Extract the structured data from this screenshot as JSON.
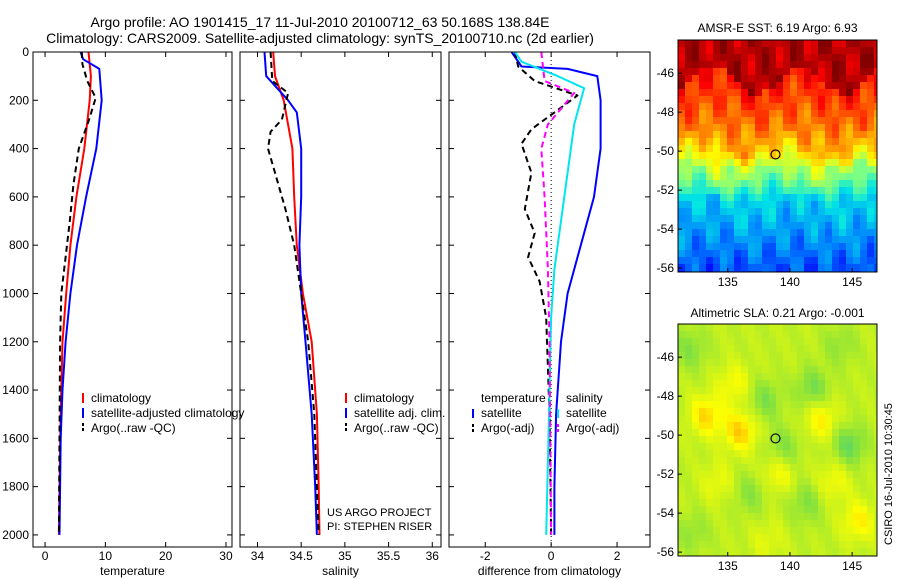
{
  "header": {
    "title_line1": "Argo profile: AO 1901415_17 11-Jul-2010 20100712_63 50.168S 138.84E",
    "title_line2": "Climatology: CARS2009. Satellite-adjusted climatology: synTS_20100710.nc (2d earlier)"
  },
  "credit": "CSIRO 16-Jul-2010 10:30:45",
  "project": {
    "line1": "US ARGO PROJECT",
    "line2": "PI: STEPHEN RISER"
  },
  "chart_data": [
    {
      "type": "line",
      "id": "temperature",
      "xlabel": "temperature",
      "ylabel": "",
      "xlim": [
        -2,
        31
      ],
      "ylim": [
        2050,
        0
      ],
      "xticks": [
        0,
        10,
        20,
        30
      ],
      "yticks": [
        0,
        200,
        400,
        600,
        800,
        1000,
        1200,
        1400,
        1600,
        1800,
        2000
      ],
      "legend": {
        "placement": "lower-right",
        "entries": [
          "climatology",
          "satellite-adjusted climatology",
          "Argo(..raw -QC)"
        ]
      },
      "series": [
        {
          "name": "climatology",
          "color": "#ff0000",
          "dash": "",
          "x": [
            7.2,
            7.6,
            7.4,
            6.5,
            5.2,
            4.2,
            3.5,
            2.9,
            2.6,
            2.4,
            2.3
          ],
          "y": [
            0,
            100,
            200,
            400,
            600,
            800,
            1000,
            1200,
            1500,
            1800,
            2000
          ]
        },
        {
          "name": "satellite-adjusted climatology",
          "color": "#0000ff",
          "dash": "",
          "x": [
            5.9,
            6.3,
            9.0,
            9.4,
            8.5,
            6.8,
            5.3,
            4.2,
            3.4,
            2.9,
            2.6,
            2.5,
            2.4
          ],
          "y": [
            0,
            30,
            70,
            200,
            400,
            600,
            800,
            1000,
            1200,
            1400,
            1600,
            1800,
            2000
          ]
        },
        {
          "name": "Argo(..raw -QC)",
          "color": "#000000",
          "dash": "6,4",
          "x": [
            6.1,
            6.2,
            7.0,
            8.4,
            7.3,
            5.6,
            4.7,
            4.1,
            3.4,
            2.7,
            2.5,
            2.4,
            2.3
          ],
          "y": [
            0,
            50,
            120,
            190,
            280,
            400,
            550,
            700,
            850,
            1000,
            1200,
            1600,
            2000
          ]
        }
      ]
    },
    {
      "type": "line",
      "id": "salinity",
      "xlabel": "salinity",
      "ylabel": "",
      "xlim": [
        33.8,
        36.1
      ],
      "ylim": [
        2050,
        0
      ],
      "xticks": [
        34,
        34.5,
        35,
        35.5,
        36
      ],
      "yticks": [
        0,
        200,
        400,
        600,
        800,
        1000,
        1200,
        1400,
        1600,
        1800,
        2000
      ],
      "legend": {
        "placement": "lower-right",
        "entries": [
          "climatology",
          "satellite adj. clim.",
          "Argo(..raw -QC)"
        ]
      },
      "series": [
        {
          "name": "climatology",
          "color": "#ff0000",
          "dash": "",
          "x": [
            34.18,
            34.2,
            34.3,
            34.4,
            34.42,
            34.45,
            34.52,
            34.62,
            34.68,
            34.7,
            34.71
          ],
          "y": [
            0,
            100,
            200,
            400,
            600,
            800,
            1000,
            1200,
            1500,
            1800,
            2000
          ]
        },
        {
          "name": "satellite adj. clim.",
          "color": "#0000ff",
          "dash": "",
          "x": [
            34.08,
            34.1,
            34.35,
            34.45,
            34.5,
            34.5,
            34.48,
            34.5,
            34.55,
            34.62,
            34.66,
            34.68
          ],
          "y": [
            0,
            100,
            200,
            250,
            400,
            600,
            800,
            1000,
            1200,
            1500,
            1800,
            2000
          ]
        },
        {
          "name": "Argo(..raw -QC)",
          "color": "#000000",
          "dash": "6,4",
          "x": [
            34.15,
            34.17,
            34.35,
            34.28,
            34.15,
            34.12,
            34.2,
            34.32,
            34.42,
            34.5,
            34.58,
            34.65,
            34.68,
            34.7
          ],
          "y": [
            0,
            120,
            170,
            280,
            330,
            400,
            500,
            650,
            800,
            1000,
            1200,
            1500,
            1800,
            2000
          ]
        }
      ]
    },
    {
      "type": "line",
      "id": "difference",
      "xlabel": "difference from climatology",
      "ylabel": "",
      "xlim": [
        -3.1,
        3.0
      ],
      "ylim": [
        2050,
        0
      ],
      "xticks": [
        -2,
        0,
        2
      ],
      "yticks": [
        0,
        200,
        400,
        600,
        800,
        1000,
        1200,
        1400,
        1600,
        1800,
        2000
      ],
      "legend": {
        "placement": "lower-middle",
        "headers": [
          "temperature",
          "salinity"
        ],
        "entries": [
          "satellite",
          "Argo(-adj)",
          "satellite",
          "Argo(-adj)"
        ]
      },
      "series": [
        {
          "name": "satellite",
          "group": "temperature",
          "color": "#0000ff",
          "dash": "",
          "x": [
            -1.2,
            -0.9,
            0.5,
            1.4,
            1.5,
            1.5,
            1.3,
            0.9,
            0.5,
            0.3,
            0.15,
            0.1,
            0.1
          ],
          "y": [
            0,
            60,
            70,
            100,
            200,
            400,
            600,
            800,
            1000,
            1200,
            1500,
            1800,
            2000
          ]
        },
        {
          "name": "Argo(-adj)",
          "group": "temperature",
          "color": "#000000",
          "dash": "6,4",
          "x": [
            -1.1,
            -1.0,
            -0.5,
            0.8,
            -0.6,
            -0.9,
            -0.6,
            -0.8,
            -0.5,
            -0.7,
            -0.35,
            -0.15,
            -0.05,
            0.0
          ],
          "y": [
            0,
            60,
            120,
            180,
            320,
            380,
            500,
            650,
            750,
            850,
            950,
            1100,
            1500,
            2000
          ]
        },
        {
          "name": "satellite",
          "group": "salinity",
          "color": "#00e5ee",
          "dash": "",
          "x": [
            -1.1,
            -0.9,
            0.2,
            1.0,
            0.7,
            0.5,
            0.3,
            0.1,
            0.0,
            -0.05,
            -0.1,
            -0.15
          ],
          "y": [
            0,
            40,
            100,
            150,
            300,
            500,
            700,
            900,
            1100,
            1400,
            1700,
            2000
          ]
        },
        {
          "name": "Argo(-adj)",
          "group": "salinity",
          "color": "#ff00ff",
          "dash": "6,4",
          "x": [
            -0.3,
            -0.2,
            0.7,
            -0.1,
            -0.3,
            -0.2,
            -0.1,
            -0.05,
            0.0
          ],
          "y": [
            0,
            120,
            170,
            300,
            400,
            600,
            900,
            1200,
            2000
          ]
        }
      ]
    },
    {
      "type": "heatmap",
      "id": "sst_map",
      "title": "AMSR-E SST: 6.19 Argo: 6.93",
      "xlim": [
        131,
        147
      ],
      "ylim": [
        -56.2,
        -44.3
      ],
      "xticks": [
        135,
        140,
        145
      ],
      "yticks": [
        -46,
        -48,
        -50,
        -52,
        -54,
        -56
      ],
      "marker": {
        "lon": 138.84,
        "lat": -50.17
      },
      "colormap": [
        "#00008f",
        "#0000ff",
        "#0080ff",
        "#00e5e5",
        "#80ff80",
        "#ffff00",
        "#ff8000",
        "#ff0000",
        "#800000"
      ],
      "fronts": [
        {
          "lat": -46.4,
          "amp": 0.7,
          "phase": 0.5,
          "lo": 0.72,
          "hi": 0.86
        },
        {
          "lat": -49.6,
          "amp": 0.6,
          "phase": 1.6,
          "lo": 0.55,
          "hi": 0.72
        },
        {
          "lat": -51.0,
          "amp": 0.5,
          "phase": 2.4,
          "lo": 0.35,
          "hi": 0.55
        },
        {
          "lat": -52.6,
          "amp": 0.45,
          "phase": 0.9,
          "lo": 0.2,
          "hi": 0.35
        },
        {
          "lat": -56.2,
          "amp": 0.0,
          "phase": 0.0,
          "lo": 0.05,
          "hi": 0.2
        }
      ]
    },
    {
      "type": "heatmap",
      "id": "sla_map",
      "title": "Altimetric SLA: 0.21 Argo: -0.001",
      "xlim": [
        131,
        147
      ],
      "ylim": [
        -56.2,
        -44.3
      ],
      "xticks": [
        135,
        140,
        145
      ],
      "yticks": [
        -46,
        -48,
        -50,
        -52,
        -54,
        -56
      ],
      "marker": {
        "lon": 138.84,
        "lat": -50.17
      },
      "colormap": [
        "#00b0b0",
        "#40d080",
        "#80e040",
        "#c0f020",
        "#ffff00",
        "#ffb000",
        "#ff6000"
      ],
      "blobs": [
        {
          "lon": 133.3,
          "lat": -49.0,
          "value": 0.82
        },
        {
          "lon": 135.5,
          "lat": -47.4,
          "value": 0.7
        },
        {
          "lon": 136.0,
          "lat": -49.8,
          "value": 0.85
        },
        {
          "lon": 138.0,
          "lat": -48.2,
          "value": 0.28
        },
        {
          "lon": 139.5,
          "lat": -50.6,
          "value": 0.3
        },
        {
          "lon": 141.8,
          "lat": -47.6,
          "value": 0.25
        },
        {
          "lon": 142.5,
          "lat": -49.2,
          "value": 0.75
        },
        {
          "lon": 144.8,
          "lat": -50.5,
          "value": 0.2
        },
        {
          "lon": 134.2,
          "lat": -52.4,
          "value": 0.65
        },
        {
          "lon": 136.8,
          "lat": -53.0,
          "value": 0.32
        },
        {
          "lon": 139.0,
          "lat": -52.0,
          "value": 0.7
        },
        {
          "lon": 141.3,
          "lat": -53.5,
          "value": 0.3
        },
        {
          "lon": 143.5,
          "lat": -52.4,
          "value": 0.68
        },
        {
          "lon": 145.5,
          "lat": -54.4,
          "value": 0.75
        },
        {
          "lon": 132.2,
          "lat": -55.0,
          "value": 0.35
        },
        {
          "lon": 138.2,
          "lat": -55.4,
          "value": 0.62
        },
        {
          "lon": 132.0,
          "lat": -45.6,
          "value": 0.3
        },
        {
          "lon": 144.0,
          "lat": -45.4,
          "value": 0.35
        }
      ]
    }
  ]
}
